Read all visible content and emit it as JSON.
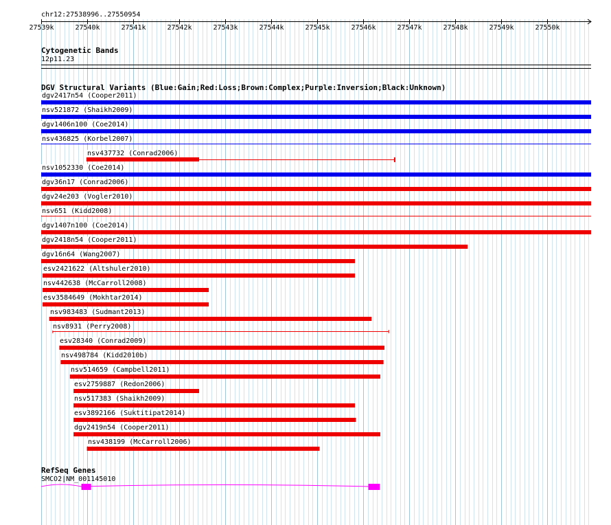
{
  "region": {
    "label": "chr12:27538996..27550954",
    "start": 27538996,
    "end": 27550954
  },
  "ruler": {
    "ticks": [
      {
        "label": "27539k",
        "pos": 27539000
      },
      {
        "label": "27540k",
        "pos": 27540000
      },
      {
        "label": "27541k",
        "pos": 27541000
      },
      {
        "label": "27542k",
        "pos": 27542000
      },
      {
        "label": "27543k",
        "pos": 27543000
      },
      {
        "label": "27544k",
        "pos": 27544000
      },
      {
        "label": "27545k",
        "pos": 27545000
      },
      {
        "label": "27546k",
        "pos": 27546000
      },
      {
        "label": "27547k",
        "pos": 27547000
      },
      {
        "label": "27548k",
        "pos": 27548000
      },
      {
        "label": "27549k",
        "pos": 27549000
      },
      {
        "label": "27550k",
        "pos": 27550000
      }
    ]
  },
  "cytoband_track": {
    "title": "Cytogenetic Bands",
    "band": "12p11.23"
  },
  "dgv_track": {
    "title": "DGV Structural Variants (Blue:Gain;Red:Loss;Brown:Complex;Purple:Inversion;Black:Unknown)",
    "colors": {
      "gain": "#0000ee",
      "loss": "#ee0000"
    },
    "features": [
      {
        "label": "dgv2417n54 (Cooper2011)",
        "type": "gain",
        "style": "thick",
        "start": 27538996,
        "end": 27550954
      },
      {
        "label": "nsv521872 (Shaikh2009)",
        "type": "gain",
        "style": "thick",
        "start": 27538996,
        "end": 27550954
      },
      {
        "label": "dgv1406n100 (Coe2014)",
        "type": "gain",
        "style": "thick",
        "start": 27538996,
        "end": 27550954
      },
      {
        "label": "nsv436825 (Korbel2007)",
        "type": "gain",
        "style": "line",
        "start": 27538996,
        "end": 27550954
      },
      {
        "label": "nsv437732 (Conrad2006)",
        "type": "loss",
        "style": "split",
        "start": 27539980,
        "end": 27546690,
        "block_end": 27542430
      },
      {
        "label": "nsv1052330 (Coe2014)",
        "type": "gain",
        "style": "thick",
        "start": 27538996,
        "end": 27550954
      },
      {
        "label": "dgv36n17 (Conrad2006)",
        "type": "loss",
        "style": "thick",
        "start": 27538996,
        "end": 27550954
      },
      {
        "label": "dgv24e203 (Vogler2010)",
        "type": "loss",
        "style": "thick",
        "start": 27538996,
        "end": 27550954
      },
      {
        "label": "nsv651 (Kidd2008)",
        "type": "loss",
        "style": "line",
        "start": 27538996,
        "end": 27550954
      },
      {
        "label": "dgv1407n100 (Coe2014)",
        "type": "loss",
        "style": "thick",
        "start": 27538996,
        "end": 27550954
      },
      {
        "label": "dgv2418n54 (Cooper2011)",
        "type": "loss",
        "style": "thick",
        "start": 27538996,
        "end": 27548270
      },
      {
        "label": "dgv16n64 (Wang2007)",
        "type": "loss",
        "style": "thick",
        "start": 27538996,
        "end": 27545820
      },
      {
        "label": "esv2421622 (Altshuler2010)",
        "type": "loss",
        "style": "thick",
        "start": 27539025,
        "end": 27545820
      },
      {
        "label": "nsv442638 (McCarroll2008)",
        "type": "loss",
        "style": "thick",
        "start": 27539025,
        "end": 27542640
      },
      {
        "label": "esv3584649 (Mokhtar2014)",
        "type": "loss",
        "style": "thick",
        "start": 27539025,
        "end": 27542640
      },
      {
        "label": "nsv983483 (Sudmant2013)",
        "type": "loss",
        "style": "thick",
        "start": 27539170,
        "end": 27546180
      },
      {
        "label": "nsv8931 (Perry2008)",
        "type": "loss",
        "style": "interval",
        "start": 27539240,
        "end": 27546560
      },
      {
        "label": "esv28340 (Conrad2009)",
        "type": "loss",
        "style": "thick",
        "start": 27539390,
        "end": 27546460
      },
      {
        "label": "nsv498784 (Kidd2010b)",
        "type": "loss",
        "style": "thick",
        "start": 27539420,
        "end": 27546440
      },
      {
        "label": "nsv514659 (Campbell2011)",
        "type": "loss",
        "style": "thick",
        "start": 27539620,
        "end": 27546370
      },
      {
        "label": "esv2759887 (Redon2006)",
        "type": "loss",
        "style": "thick",
        "start": 27539700,
        "end": 27542430
      },
      {
        "label": "nsv517383 (Shaikh2009)",
        "type": "loss",
        "style": "thick",
        "start": 27539700,
        "end": 27545820
      },
      {
        "label": "esv3892166 (Suktitipat2014)",
        "type": "loss",
        "style": "thick",
        "start": 27539700,
        "end": 27545840
      },
      {
        "label": "dgv2419n54 (Cooper2011)",
        "type": "loss",
        "style": "thick",
        "start": 27539700,
        "end": 27546370
      },
      {
        "label": "nsv438199 (McCarroll2006)",
        "type": "loss",
        "style": "thick",
        "start": 27539990,
        "end": 27545050
      }
    ]
  },
  "refseq_track": {
    "title": "RefSeq Genes",
    "gene": {
      "label": "SMCO2|NM_001145010",
      "color": "#ff00ff",
      "start": 27538996,
      "end": 27546360,
      "exons": [
        {
          "start": 27539870,
          "end": 27540080
        },
        {
          "start": 27546110,
          "end": 27546360
        }
      ]
    }
  }
}
